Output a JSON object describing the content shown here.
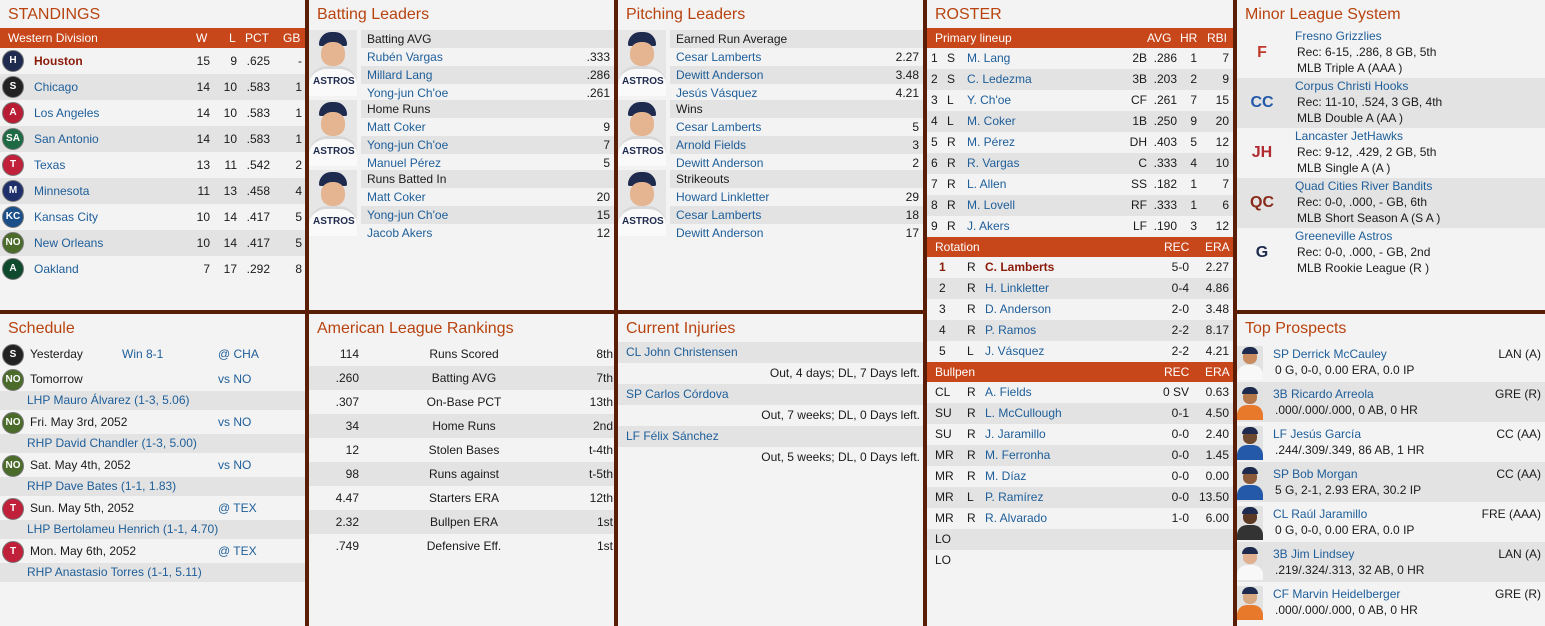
{
  "standings": {
    "title": "STANDINGS",
    "division": "Western Division",
    "headers": [
      "W",
      "L",
      "PCT",
      "GB"
    ],
    "teams": [
      {
        "name": "Houston",
        "w": "15",
        "l": "9",
        "pct": ".625",
        "gb": "-",
        "color": "#1e2a4e",
        "abbr": "H"
      },
      {
        "name": "Chicago",
        "w": "14",
        "l": "10",
        "pct": ".583",
        "gb": "1",
        "color": "#222222",
        "abbr": "S"
      },
      {
        "name": "Los Angeles",
        "w": "14",
        "l": "10",
        "pct": ".583",
        "gb": "1",
        "color": "#b81d33",
        "abbr": "A"
      },
      {
        "name": "San Antonio",
        "w": "14",
        "l": "10",
        "pct": ".583",
        "gb": "1",
        "color": "#1d6a45",
        "abbr": "SA"
      },
      {
        "name": "Texas",
        "w": "13",
        "l": "11",
        "pct": ".542",
        "gb": "2",
        "color": "#c0203a",
        "abbr": "T"
      },
      {
        "name": "Minnesota",
        "w": "11",
        "l": "13",
        "pct": ".458",
        "gb": "4",
        "color": "#1f2f6a",
        "abbr": "M"
      },
      {
        "name": "Kansas City",
        "w": "10",
        "l": "14",
        "pct": ".417",
        "gb": "5",
        "color": "#1a4f8a",
        "abbr": "KC"
      },
      {
        "name": "New Orleans",
        "w": "10",
        "l": "14",
        "pct": ".417",
        "gb": "5",
        "color": "#4a6b2a",
        "abbr": "NO"
      },
      {
        "name": "Oakland",
        "w": "7",
        "l": "17",
        "pct": ".292",
        "gb": "8",
        "color": "#0f4a2e",
        "abbr": "A"
      }
    ]
  },
  "batting": {
    "title": "Batting Leaders",
    "cats": [
      {
        "label": "Batting AVG",
        "rows": [
          {
            "name": "Rubén Vargas",
            "val": ".333"
          },
          {
            "name": "Millard Lang",
            "val": ".286"
          },
          {
            "name": "Yong-jun Ch'oe",
            "val": ".261"
          }
        ]
      },
      {
        "label": "Home Runs",
        "rows": [
          {
            "name": "Matt Coker",
            "val": "9"
          },
          {
            "name": "Yong-jun Ch'oe",
            "val": "7"
          },
          {
            "name": "Manuel Pérez",
            "val": "5"
          }
        ]
      },
      {
        "label": "Runs Batted In",
        "rows": [
          {
            "name": "Matt Coker",
            "val": "20"
          },
          {
            "name": "Yong-jun Ch'oe",
            "val": "15"
          },
          {
            "name": "Jacob Akers",
            "val": "12"
          }
        ]
      }
    ]
  },
  "pitching": {
    "title": "Pitching Leaders",
    "cats": [
      {
        "label": "Earned Run Average",
        "rows": [
          {
            "name": "Cesar Lamberts",
            "val": "2.27"
          },
          {
            "name": "Dewitt Anderson",
            "val": "3.48"
          },
          {
            "name": "Jesús Vásquez",
            "val": "4.21"
          }
        ]
      },
      {
        "label": "Wins",
        "rows": [
          {
            "name": "Cesar Lamberts",
            "val": "5"
          },
          {
            "name": "Arnold Fields",
            "val": "3"
          },
          {
            "name": "Dewitt Anderson",
            "val": "2"
          }
        ]
      },
      {
        "label": "Strikeouts",
        "rows": [
          {
            "name": "Howard Linkletter",
            "val": "29"
          },
          {
            "name": "Cesar Lamberts",
            "val": "18"
          },
          {
            "name": "Dewitt Anderson",
            "val": "17"
          }
        ]
      }
    ]
  },
  "roster": {
    "title": "ROSTER",
    "lineup_label": "Primary lineup",
    "lineup_headers": [
      "AVG",
      "HR",
      "RBI"
    ],
    "lineup": [
      {
        "n": "1",
        "b": "S",
        "name": "M. Lang",
        "pos": "2B",
        "avg": ".286",
        "hr": "1",
        "rbi": "7"
      },
      {
        "n": "2",
        "b": "S",
        "name": "C. Ledezma",
        "pos": "3B",
        "avg": ".203",
        "hr": "2",
        "rbi": "9"
      },
      {
        "n": "3",
        "b": "L",
        "name": "Y. Ch'oe",
        "pos": "CF",
        "avg": ".261",
        "hr": "7",
        "rbi": "15"
      },
      {
        "n": "4",
        "b": "L",
        "name": "M. Coker",
        "pos": "1B",
        "avg": ".250",
        "hr": "9",
        "rbi": "20"
      },
      {
        "n": "5",
        "b": "R",
        "name": "M. Pérez",
        "pos": "DH",
        "avg": ".403",
        "hr": "5",
        "rbi": "12"
      },
      {
        "n": "6",
        "b": "R",
        "name": "R. Vargas",
        "pos": "C",
        "avg": ".333",
        "hr": "4",
        "rbi": "10"
      },
      {
        "n": "7",
        "b": "R",
        "name": "L. Allen",
        "pos": "SS",
        "avg": ".182",
        "hr": "1",
        "rbi": "7"
      },
      {
        "n": "8",
        "b": "R",
        "name": "M. Lovell",
        "pos": "RF",
        "avg": ".333",
        "hr": "1",
        "rbi": "6"
      },
      {
        "n": "9",
        "b": "R",
        "name": "J. Akers",
        "pos": "LF",
        "avg": ".190",
        "hr": "3",
        "rbi": "12"
      }
    ],
    "rotation_label": "Rotation",
    "rotation_headers": [
      "REC",
      "ERA"
    ],
    "rotation": [
      {
        "n": "1",
        "t": "R",
        "name": "C. Lamberts",
        "rec": "5-0",
        "era": "2.27"
      },
      {
        "n": "2",
        "t": "R",
        "name": "H. Linkletter",
        "rec": "0-4",
        "era": "4.86"
      },
      {
        "n": "3",
        "t": "R",
        "name": "D. Anderson",
        "rec": "2-0",
        "era": "3.48"
      },
      {
        "n": "4",
        "t": "R",
        "name": "P. Ramos",
        "rec": "2-2",
        "era": "8.17"
      },
      {
        "n": "5",
        "t": "L",
        "name": "J. Vásquez",
        "rec": "2-2",
        "era": "4.21"
      }
    ],
    "bullpen_label": "Bullpen",
    "bullpen_headers": [
      "REC",
      "ERA"
    ],
    "bullpen": [
      {
        "role": "CL",
        "t": "R",
        "name": "A. Fields",
        "rec": "0 SV",
        "era": "0.63"
      },
      {
        "role": "SU",
        "t": "R",
        "name": "L. McCullough",
        "rec": "0-1",
        "era": "4.50"
      },
      {
        "role": "SU",
        "t": "R",
        "name": "J. Jaramillo",
        "rec": "0-0",
        "era": "2.40"
      },
      {
        "role": "MR",
        "t": "R",
        "name": "M. Ferronha",
        "rec": "0-0",
        "era": "1.45"
      },
      {
        "role": "MR",
        "t": "R",
        "name": "M. Díaz",
        "rec": "0-0",
        "era": "0.00"
      },
      {
        "role": "MR",
        "t": "L",
        "name": "P. Ramírez",
        "rec": "0-0",
        "era": "13.50"
      },
      {
        "role": "MR",
        "t": "R",
        "name": "R. Alvarado",
        "rec": "1-0",
        "era": "6.00"
      },
      {
        "role": "LO",
        "t": "",
        "name": "",
        "rec": "",
        "era": ""
      },
      {
        "role": "LO",
        "t": "",
        "name": "",
        "rec": "",
        "era": ""
      }
    ]
  },
  "minors": {
    "title": "Minor League System",
    "teams": [
      {
        "name": "Fresno Grizzlies",
        "rec": "Rec: 6-15, .286, 8 GB, 5th",
        "level": "MLB Triple A (AAA )",
        "color": "#c0392b",
        "abbr": "F"
      },
      {
        "name": "Corpus Christi Hooks",
        "rec": "Rec: 11-10, .524, 3 GB, 4th",
        "level": "MLB Double A (AA )",
        "color": "#2458a8",
        "abbr": "CC"
      },
      {
        "name": "Lancaster JetHawks",
        "rec": "Rec: 9-12, .429, 2 GB, 5th",
        "level": "MLB Single A (A )",
        "color": "#b02a30",
        "abbr": "JH"
      },
      {
        "name": "Quad Cities River Bandits",
        "rec": "Rec: 0-0, .000, - GB, 6th",
        "level": "MLB Short Season A (S A )",
        "color": "#8a2a1a",
        "abbr": "QC"
      },
      {
        "name": "Greeneville Astros",
        "rec": "Rec: 0-0, .000, - GB, 2nd",
        "level": "MLB Rookie League (R )",
        "color": "#1e2a4e",
        "abbr": "G"
      }
    ]
  },
  "schedule": {
    "title": "Schedule",
    "items": [
      {
        "day": "Yesterday",
        "result": "Win 8-1",
        "opp": "@ CHA",
        "pitcher": "",
        "color": "#222222",
        "abbr": "S"
      },
      {
        "day": "Tomorrow",
        "result": "",
        "opp": "vs NO",
        "pitcher": "LHP Mauro Álvarez (1-3, 5.06)",
        "color": "#4a6b2a",
        "abbr": "NO"
      },
      {
        "day": "Fri. May 3rd, 2052",
        "result": "",
        "opp": "vs NO",
        "pitcher": "RHP David Chandler (1-3, 5.00)",
        "color": "#4a6b2a",
        "abbr": "NO"
      },
      {
        "day": "Sat. May 4th, 2052",
        "result": "",
        "opp": "vs NO",
        "pitcher": "RHP Dave Bates (1-1, 1.83)",
        "color": "#4a6b2a",
        "abbr": "NO"
      },
      {
        "day": "Sun. May 5th, 2052",
        "result": "",
        "opp": "@ TEX",
        "pitcher": "LHP Bertolameu Henrich (1-1, 4.70)",
        "color": "#c0203a",
        "abbr": "T"
      },
      {
        "day": "Mon. May 6th, 2052",
        "result": "",
        "opp": "@ TEX",
        "pitcher": "RHP Anastasio Torres (1-1, 5.11)",
        "color": "#c0203a",
        "abbr": "T"
      }
    ]
  },
  "rankings": {
    "title": "American League Rankings",
    "rows": [
      {
        "val": "114",
        "label": "Runs Scored",
        "rank": "8th"
      },
      {
        "val": ".260",
        "label": "Batting AVG",
        "rank": "7th"
      },
      {
        "val": ".307",
        "label": "On-Base PCT",
        "rank": "13th"
      },
      {
        "val": "34",
        "label": "Home Runs",
        "rank": "2nd"
      },
      {
        "val": "12",
        "label": "Stolen Bases",
        "rank": "t-4th"
      },
      {
        "val": "98",
        "label": "Runs against",
        "rank": "t-5th"
      },
      {
        "val": "4.47",
        "label": "Starters ERA",
        "rank": "12th"
      },
      {
        "val": "2.32",
        "label": "Bullpen ERA",
        "rank": "1st"
      },
      {
        "val": ".749",
        "label": "Defensive Eff.",
        "rank": "1st"
      }
    ]
  },
  "injuries": {
    "title": "Current Injuries",
    "items": [
      {
        "name": "CL John Christensen",
        "status": "Out, 4 days; DL, 7 Days left."
      },
      {
        "name": "SP Carlos Córdova",
        "status": "Out, 7 weeks; DL, 0 Days left."
      },
      {
        "name": "LF Félix Sánchez",
        "status": "Out, 5 weeks; DL, 0 Days left."
      }
    ]
  },
  "prospects": {
    "title": "Top Prospects",
    "items": [
      {
        "name": "SP Derrick McCauley",
        "team": "LAN (A)",
        "line": "0 G, 0-0, 0.00 ERA, 0.0 IP",
        "skin": "#c98c60",
        "jersey": "#f8f8f8"
      },
      {
        "name": "3B Ricardo Arreola",
        "team": "GRE (R)",
        "line": ".000/.000/.000, 0 AB, 0 HR",
        "skin": "#b5764a",
        "jersey": "#e8792a"
      },
      {
        "name": "LF Jesús García",
        "team": "CC (AA)",
        "line": ".244/.309/.349, 86 AB, 1 HR",
        "skin": "#6e4a30",
        "jersey": "#2458a8"
      },
      {
        "name": "SP Bob Morgan",
        "team": "CC (AA)",
        "line": "5 G, 2-1, 2.93 ERA, 30.2 IP",
        "skin": "#8a5a3a",
        "jersey": "#2458a8"
      },
      {
        "name": "CL Raúl Jaramillo",
        "team": "FRE (AAA)",
        "line": "0 G, 0-0, 0.00 ERA, 0.0 IP",
        "skin": "#5a3a25",
        "jersey": "#333333"
      },
      {
        "name": "3B Jim Lindsey",
        "team": "LAN (A)",
        "line": ".219/.324/.313, 32 AB, 0 HR",
        "skin": "#e0b090",
        "jersey": "#f8f8f8"
      },
      {
        "name": "CF Marvin Heidelberger",
        "team": "GRE (R)",
        "line": ".000/.000/.000, 0 AB, 0 HR",
        "skin": "#d8a880",
        "jersey": "#e8792a"
      }
    ]
  }
}
